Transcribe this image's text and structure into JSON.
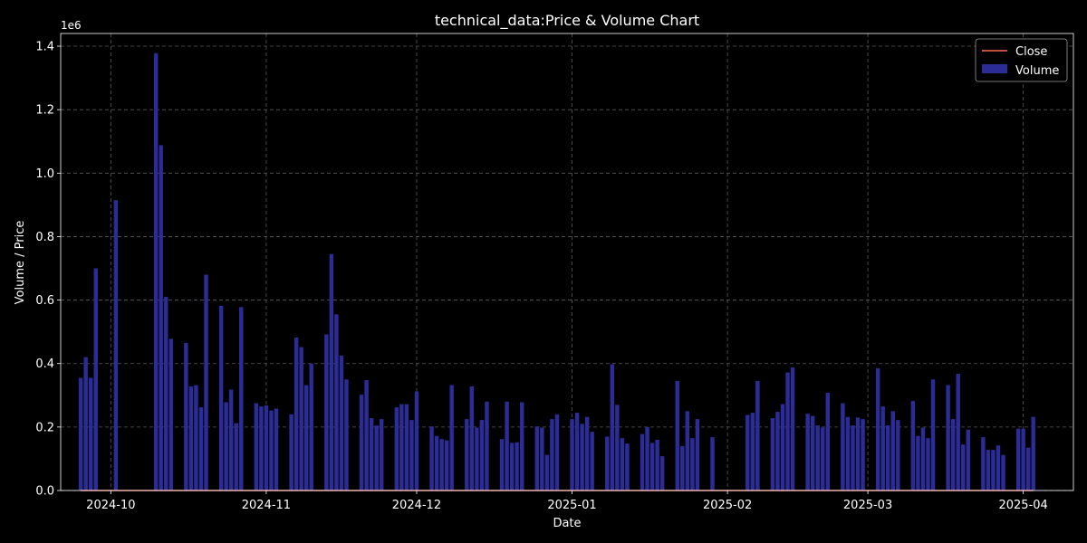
{
  "chart_data": {
    "type": "bar",
    "title": "technical_data:Price & Volume Chart",
    "xlabel": "Date",
    "ylabel": "Volume / Price",
    "y_offset_label": "1e6",
    "ylim": [
      0,
      1440000
    ],
    "y_ticks": [
      0,
      200000,
      400000,
      600000,
      800000,
      1000000,
      1200000,
      1400000
    ],
    "y_tick_labels": [
      "0.0",
      "0.2",
      "0.4",
      "0.6",
      "0.8",
      "1.0",
      "1.2",
      "1.4"
    ],
    "xlim": [
      "2024-09-21",
      "2025-04-11"
    ],
    "x_ticks": [
      "2024-10-01",
      "2024-11-01",
      "2024-12-01",
      "2025-01-01",
      "2025-02-01",
      "2025-03-01",
      "2025-04-01"
    ],
    "x_tick_labels": [
      "2024-10",
      "2024-11",
      "2024-12",
      "2025-01",
      "2025-02",
      "2025-03",
      "2025-04"
    ],
    "grid": true,
    "legend_position": "top-right",
    "legend": [
      {
        "label": "Close",
        "kind": "line",
        "color": "#e05a48"
      },
      {
        "label": "Volume",
        "kind": "bar",
        "color": "#2c2c96"
      }
    ],
    "series": [
      {
        "name": "Volume",
        "kind": "bar",
        "color": "#2c2c96",
        "points": [
          [
            "2024-09-25",
            355000
          ],
          [
            "2024-09-26",
            420000
          ],
          [
            "2024-09-27",
            355000
          ],
          [
            "2024-09-28",
            700000
          ],
          [
            "2024-10-02",
            915000
          ],
          [
            "2024-10-10",
            1378000
          ],
          [
            "2024-10-11",
            1088000
          ],
          [
            "2024-10-12",
            610000
          ],
          [
            "2024-10-13",
            478000
          ],
          [
            "2024-10-16",
            465000
          ],
          [
            "2024-10-17",
            328000
          ],
          [
            "2024-10-18",
            332000
          ],
          [
            "2024-10-19",
            262000
          ],
          [
            "2024-10-20",
            680000
          ],
          [
            "2024-10-23",
            582000
          ],
          [
            "2024-10-24",
            278000
          ],
          [
            "2024-10-25",
            318000
          ],
          [
            "2024-10-26",
            212000
          ],
          [
            "2024-10-27",
            578000
          ],
          [
            "2024-10-30",
            275000
          ],
          [
            "2024-10-31",
            265000
          ],
          [
            "2024-11-01",
            268000
          ],
          [
            "2024-11-02",
            252000
          ],
          [
            "2024-11-03",
            258000
          ],
          [
            "2024-11-06",
            240000
          ],
          [
            "2024-11-07",
            482000
          ],
          [
            "2024-11-08",
            452000
          ],
          [
            "2024-11-09",
            332000
          ],
          [
            "2024-11-10",
            400000
          ],
          [
            "2024-11-13",
            492000
          ],
          [
            "2024-11-14",
            745000
          ],
          [
            "2024-11-15",
            555000
          ],
          [
            "2024-11-16",
            425000
          ],
          [
            "2024-11-17",
            350000
          ],
          [
            "2024-11-20",
            302000
          ],
          [
            "2024-11-21",
            348000
          ],
          [
            "2024-11-22",
            228000
          ],
          [
            "2024-11-23",
            205000
          ],
          [
            "2024-11-24",
            225000
          ],
          [
            "2024-11-27",
            262000
          ],
          [
            "2024-11-28",
            272000
          ],
          [
            "2024-11-29",
            272000
          ],
          [
            "2024-11-30",
            222000
          ],
          [
            "2024-12-01",
            312000
          ],
          [
            "2024-12-04",
            202000
          ],
          [
            "2024-12-05",
            172000
          ],
          [
            "2024-12-06",
            162000
          ],
          [
            "2024-12-07",
            158000
          ],
          [
            "2024-12-08",
            332000
          ],
          [
            "2024-12-11",
            225000
          ],
          [
            "2024-12-12",
            328000
          ],
          [
            "2024-12-13",
            198000
          ],
          [
            "2024-12-14",
            222000
          ],
          [
            "2024-12-15",
            280000
          ],
          [
            "2024-12-18",
            162000
          ],
          [
            "2024-12-19",
            280000
          ],
          [
            "2024-12-20",
            150000
          ],
          [
            "2024-12-21",
            152000
          ],
          [
            "2024-12-22",
            278000
          ],
          [
            "2024-12-25",
            202000
          ],
          [
            "2024-12-26",
            198000
          ],
          [
            "2024-12-27",
            112000
          ],
          [
            "2024-12-28",
            225000
          ],
          [
            "2024-12-29",
            240000
          ],
          [
            "2025-01-01",
            225000
          ],
          [
            "2025-01-02",
            245000
          ],
          [
            "2025-01-03",
            210000
          ],
          [
            "2025-01-04",
            232000
          ],
          [
            "2025-01-05",
            185000
          ],
          [
            "2025-01-08",
            170000
          ],
          [
            "2025-01-09",
            398000
          ],
          [
            "2025-01-10",
            270000
          ],
          [
            "2025-01-11",
            165000
          ],
          [
            "2025-01-12",
            148000
          ],
          [
            "2025-01-15",
            178000
          ],
          [
            "2025-01-16",
            200000
          ],
          [
            "2025-01-17",
            150000
          ],
          [
            "2025-01-18",
            160000
          ],
          [
            "2025-01-19",
            108000
          ],
          [
            "2025-01-22",
            345000
          ],
          [
            "2025-01-23",
            140000
          ],
          [
            "2025-01-24",
            250000
          ],
          [
            "2025-01-25",
            165000
          ],
          [
            "2025-01-26",
            225000
          ],
          [
            "2025-01-29",
            168000
          ],
          [
            "2025-02-05",
            238000
          ],
          [
            "2025-02-06",
            245000
          ],
          [
            "2025-02-07",
            345000
          ],
          [
            "2025-02-10",
            228000
          ],
          [
            "2025-02-11",
            248000
          ],
          [
            "2025-02-12",
            272000
          ],
          [
            "2025-02-13",
            372000
          ],
          [
            "2025-02-14",
            388000
          ],
          [
            "2025-02-17",
            242000
          ],
          [
            "2025-02-18",
            235000
          ],
          [
            "2025-02-19",
            205000
          ],
          [
            "2025-02-20",
            198000
          ],
          [
            "2025-02-21",
            308000
          ],
          [
            "2025-02-24",
            275000
          ],
          [
            "2025-02-25",
            232000
          ],
          [
            "2025-02-26",
            205000
          ],
          [
            "2025-02-27",
            230000
          ],
          [
            "2025-02-28",
            225000
          ],
          [
            "2025-03-03",
            385000
          ],
          [
            "2025-03-04",
            265000
          ],
          [
            "2025-03-05",
            205000
          ],
          [
            "2025-03-06",
            250000
          ],
          [
            "2025-03-07",
            222000
          ],
          [
            "2025-03-10",
            282000
          ],
          [
            "2025-03-11",
            172000
          ],
          [
            "2025-03-12",
            198000
          ],
          [
            "2025-03-13",
            165000
          ],
          [
            "2025-03-14",
            350000
          ],
          [
            "2025-03-17",
            332000
          ],
          [
            "2025-03-18",
            225000
          ],
          [
            "2025-03-19",
            368000
          ],
          [
            "2025-03-20",
            145000
          ],
          [
            "2025-03-21",
            192000
          ],
          [
            "2025-03-24",
            168000
          ],
          [
            "2025-03-25",
            128000
          ],
          [
            "2025-03-26",
            128000
          ],
          [
            "2025-03-27",
            142000
          ],
          [
            "2025-03-28",
            112000
          ],
          [
            "2025-03-31",
            195000
          ],
          [
            "2025-04-01",
            195000
          ],
          [
            "2025-04-02",
            135000
          ],
          [
            "2025-04-03",
            232000
          ]
        ]
      },
      {
        "name": "Close",
        "kind": "line",
        "color": "#e05a48",
        "points": [
          [
            "2024-09-25",
            0
          ],
          [
            "2025-04-03",
            0
          ]
        ]
      }
    ]
  }
}
